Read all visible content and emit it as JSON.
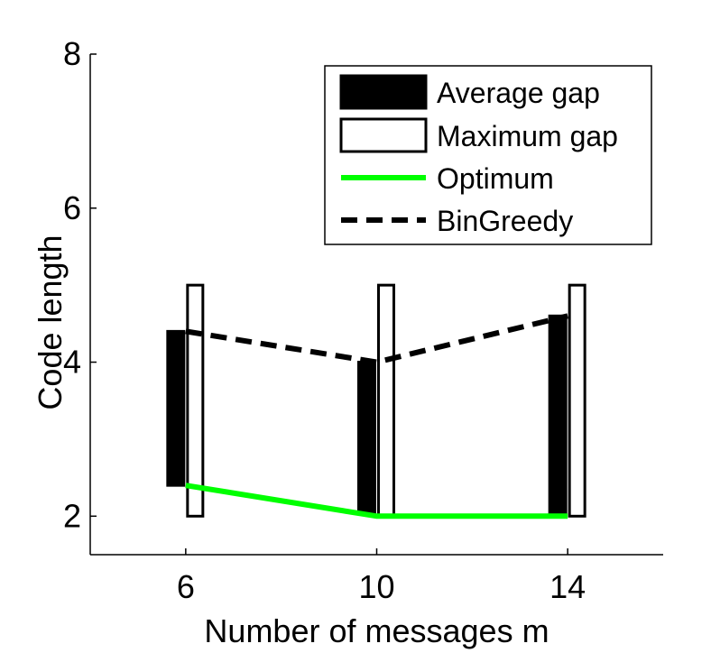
{
  "chart_data": {
    "type": "bar",
    "title": "",
    "xlabel": "Number of messages m",
    "ylabel": "Code length",
    "x": [
      6,
      10,
      14
    ],
    "x_ticks": [
      "6",
      "10",
      "14"
    ],
    "xlim": [
      4,
      16
    ],
    "y_ticks": [
      "2",
      "4",
      "6",
      "8"
    ],
    "ylim": [
      1.5,
      8
    ],
    "grid": false,
    "legend_position": "top-right",
    "series": [
      {
        "name": "Average gap",
        "kind": "floating-bar",
        "fill": "#000000",
        "low": [
          2.4,
          2.05,
          2.05
        ],
        "high": [
          4.4,
          4.0,
          4.6
        ]
      },
      {
        "name": "Maximum gap",
        "kind": "floating-bar",
        "fill": "#ffffff",
        "low": [
          2.0,
          2.0,
          2.0
        ],
        "high": [
          5.0,
          5.0,
          5.0
        ]
      },
      {
        "name": "Optimum",
        "kind": "line",
        "color": "#00ff00",
        "style": "solid",
        "values": [
          2.4,
          2.0,
          2.0
        ]
      },
      {
        "name": "BinGreedy",
        "kind": "line",
        "color": "#000000",
        "style": "dashed",
        "values": [
          4.4,
          4.0,
          4.6
        ]
      }
    ]
  }
}
